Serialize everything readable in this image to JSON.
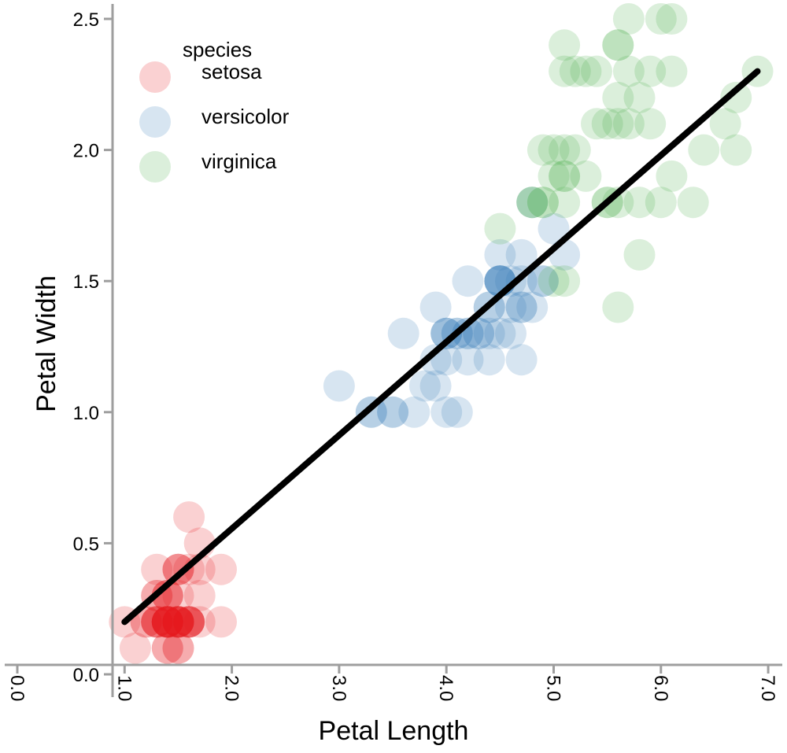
{
  "chart_data": {
    "type": "scatter",
    "title": "",
    "xlabel": "Petal Length",
    "ylabel": "Petal Width",
    "xlim": [
      0.0,
      7.0
    ],
    "ylim": [
      0.0,
      2.5
    ],
    "x_ticks": [
      "0.0",
      "1.0",
      "2.0",
      "3.0",
      "4.0",
      "5.0",
      "6.0",
      "7.0"
    ],
    "y_ticks": [
      "0.0",
      "0.5",
      "1.0",
      "1.5",
      "2.0",
      "2.5"
    ],
    "grid": false,
    "legend": {
      "title": "species",
      "position": "top-left"
    },
    "series": [
      {
        "name": "setosa",
        "color": "#e41a1c",
        "points": [
          [
            1.4,
            0.2
          ],
          [
            1.4,
            0.2
          ],
          [
            1.3,
            0.2
          ],
          [
            1.5,
            0.2
          ],
          [
            1.4,
            0.2
          ],
          [
            1.7,
            0.4
          ],
          [
            1.4,
            0.3
          ],
          [
            1.5,
            0.2
          ],
          [
            1.4,
            0.2
          ],
          [
            1.5,
            0.1
          ],
          [
            1.5,
            0.2
          ],
          [
            1.6,
            0.2
          ],
          [
            1.4,
            0.1
          ],
          [
            1.1,
            0.1
          ],
          [
            1.2,
            0.2
          ],
          [
            1.5,
            0.4
          ],
          [
            1.3,
            0.4
          ],
          [
            1.4,
            0.3
          ],
          [
            1.7,
            0.3
          ],
          [
            1.5,
            0.3
          ],
          [
            1.7,
            0.2
          ],
          [
            1.5,
            0.4
          ],
          [
            1.0,
            0.2
          ],
          [
            1.7,
            0.5
          ],
          [
            1.9,
            0.2
          ],
          [
            1.6,
            0.2
          ],
          [
            1.6,
            0.4
          ],
          [
            1.5,
            0.2
          ],
          [
            1.4,
            0.2
          ],
          [
            1.6,
            0.2
          ],
          [
            1.6,
            0.2
          ],
          [
            1.5,
            0.4
          ],
          [
            1.5,
            0.1
          ],
          [
            1.4,
            0.2
          ],
          [
            1.5,
            0.2
          ],
          [
            1.2,
            0.2
          ],
          [
            1.3,
            0.2
          ],
          [
            1.4,
            0.1
          ],
          [
            1.3,
            0.2
          ],
          [
            1.5,
            0.2
          ],
          [
            1.3,
            0.3
          ],
          [
            1.3,
            0.3
          ],
          [
            1.3,
            0.2
          ],
          [
            1.6,
            0.6
          ],
          [
            1.9,
            0.4
          ],
          [
            1.4,
            0.3
          ],
          [
            1.6,
            0.2
          ],
          [
            1.4,
            0.2
          ],
          [
            1.5,
            0.2
          ],
          [
            1.4,
            0.2
          ]
        ]
      },
      {
        "name": "versicolor",
        "color": "#377eb8",
        "points": [
          [
            4.7,
            1.4
          ],
          [
            4.5,
            1.5
          ],
          [
            4.9,
            1.5
          ],
          [
            4.0,
            1.3
          ],
          [
            4.6,
            1.5
          ],
          [
            4.5,
            1.3
          ],
          [
            4.7,
            1.6
          ],
          [
            3.3,
            1.0
          ],
          [
            4.6,
            1.3
          ],
          [
            3.9,
            1.4
          ],
          [
            3.5,
            1.0
          ],
          [
            4.2,
            1.5
          ],
          [
            4.0,
            1.0
          ],
          [
            4.7,
            1.4
          ],
          [
            3.6,
            1.3
          ],
          [
            4.4,
            1.4
          ],
          [
            4.5,
            1.5
          ],
          [
            4.1,
            1.0
          ],
          [
            4.5,
            1.5
          ],
          [
            3.9,
            1.1
          ],
          [
            4.8,
            1.8
          ],
          [
            4.0,
            1.3
          ],
          [
            4.9,
            1.5
          ],
          [
            4.7,
            1.2
          ],
          [
            4.3,
            1.3
          ],
          [
            4.4,
            1.4
          ],
          [
            4.8,
            1.4
          ],
          [
            5.0,
            1.7
          ],
          [
            4.5,
            1.5
          ],
          [
            3.5,
            1.0
          ],
          [
            3.8,
            1.1
          ],
          [
            3.7,
            1.0
          ],
          [
            3.9,
            1.2
          ],
          [
            5.1,
            1.6
          ],
          [
            4.5,
            1.5
          ],
          [
            4.5,
            1.6
          ],
          [
            4.7,
            1.5
          ],
          [
            4.4,
            1.3
          ],
          [
            4.1,
            1.3
          ],
          [
            4.0,
            1.3
          ],
          [
            4.4,
            1.2
          ],
          [
            4.6,
            1.4
          ],
          [
            4.0,
            1.2
          ],
          [
            3.3,
            1.0
          ],
          [
            4.2,
            1.3
          ],
          [
            4.2,
            1.2
          ],
          [
            4.2,
            1.3
          ],
          [
            4.3,
            1.3
          ],
          [
            3.0,
            1.1
          ],
          [
            4.1,
            1.3
          ]
        ]
      },
      {
        "name": "virginica",
        "color": "#4daf4a",
        "points": [
          [
            6.0,
            2.5
          ],
          [
            5.1,
            1.9
          ],
          [
            5.9,
            2.1
          ],
          [
            5.6,
            1.8
          ],
          [
            5.8,
            2.2
          ],
          [
            6.6,
            2.1
          ],
          [
            4.5,
            1.7
          ],
          [
            6.3,
            1.8
          ],
          [
            5.8,
            1.8
          ],
          [
            6.1,
            2.5
          ],
          [
            5.1,
            2.0
          ],
          [
            5.3,
            1.9
          ],
          [
            5.5,
            2.1
          ],
          [
            5.0,
            2.0
          ],
          [
            5.1,
            2.4
          ],
          [
            5.3,
            2.3
          ],
          [
            5.5,
            1.8
          ],
          [
            6.7,
            2.2
          ],
          [
            6.9,
            2.3
          ],
          [
            5.0,
            1.5
          ],
          [
            5.7,
            2.3
          ],
          [
            4.9,
            2.0
          ],
          [
            6.7,
            2.0
          ],
          [
            4.9,
            1.8
          ],
          [
            5.7,
            2.1
          ],
          [
            6.0,
            1.8
          ],
          [
            4.8,
            1.8
          ],
          [
            4.9,
            1.8
          ],
          [
            5.6,
            2.1
          ],
          [
            5.8,
            1.6
          ],
          [
            6.1,
            1.9
          ],
          [
            6.4,
            2.0
          ],
          [
            5.6,
            2.2
          ],
          [
            5.1,
            1.5
          ],
          [
            5.6,
            1.4
          ],
          [
            6.1,
            2.3
          ],
          [
            5.6,
            2.4
          ],
          [
            5.5,
            1.8
          ],
          [
            4.8,
            1.8
          ],
          [
            5.4,
            2.1
          ],
          [
            5.6,
            2.4
          ],
          [
            5.1,
            2.3
          ],
          [
            5.1,
            1.9
          ],
          [
            5.9,
            2.3
          ],
          [
            5.7,
            2.5
          ],
          [
            5.2,
            2.3
          ],
          [
            5.0,
            1.9
          ],
          [
            5.2,
            2.0
          ],
          [
            5.4,
            2.3
          ],
          [
            5.1,
            1.8
          ]
        ]
      }
    ],
    "trend_line": {
      "color": "#000000",
      "from": [
        1.0,
        0.2
      ],
      "to": [
        6.9,
        2.3
      ]
    }
  }
}
